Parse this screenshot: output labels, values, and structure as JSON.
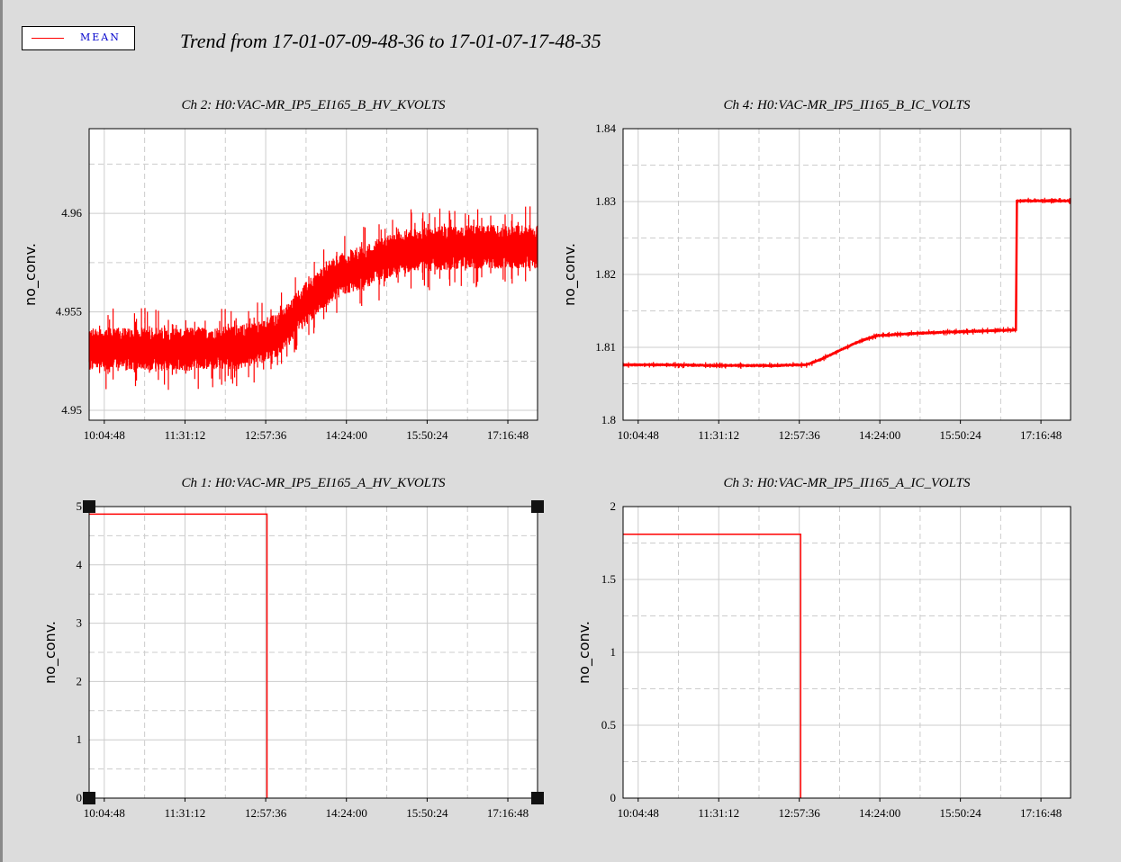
{
  "legend": {
    "label": "MEAN",
    "color": "#ff0000"
  },
  "trend_title": "Trend from 17-01-07-09-48-36 to 17-01-07-17-48-35",
  "chart_data": [
    {
      "id": "ch2",
      "type": "line",
      "title": "Ch 2: H0:VAC-MR_IP5_EI165_B_HV_KVOLTS",
      "ylabel": "no_conv.",
      "xticks": [
        "10:04:48",
        "11:31:12",
        "12:57:36",
        "14:24:00",
        "15:50:24",
        "17:16:48"
      ],
      "yticks": [
        "4.95",
        "4.955",
        "4.96"
      ],
      "ylim": [
        4.9495,
        4.9643
      ],
      "grid": true,
      "noisy": true,
      "series": [
        {
          "color": "#ff0000",
          "x": [
            "09:48:36",
            "10:30",
            "11:10",
            "11:50",
            "12:30",
            "12:50",
            "13:10",
            "13:20",
            "13:30",
            "13:45",
            "14:00",
            "14:15",
            "14:30",
            "14:45",
            "15:00",
            "15:30",
            "16:00",
            "16:30",
            "17:00",
            "17:48"
          ],
          "values": [
            4.9531,
            4.9531,
            4.9531,
            4.9531,
            4.9532,
            4.9535,
            4.9538,
            4.9542,
            4.9549,
            4.9556,
            4.9563,
            4.9568,
            4.9571,
            4.9573,
            4.9577,
            4.9581,
            4.9582,
            4.9583,
            4.9583,
            4.9583
          ]
        }
      ]
    },
    {
      "id": "ch4",
      "type": "line",
      "title": "Ch 4: H0:VAC-MR_IP5_II165_B_IC_VOLTS",
      "ylabel": "no_conv.",
      "xticks": [
        "10:04:48",
        "11:31:12",
        "12:57:36",
        "14:24:00",
        "15:50:24",
        "17:16:48"
      ],
      "yticks": [
        "1.8",
        "1.81",
        "1.82",
        "1.83",
        "1.84"
      ],
      "ylim": [
        1.8,
        1.84
      ],
      "grid": true,
      "noisy": true,
      "series": [
        {
          "color": "#ff0000",
          "x": [
            "09:48:36",
            "10:30",
            "11:30",
            "12:30",
            "13:05",
            "13:20",
            "13:40",
            "14:00",
            "14:20",
            "15:00",
            "15:40",
            "16:30",
            "16:50",
            "16:51",
            "17:48"
          ],
          "values": [
            1.8076,
            1.8076,
            1.8075,
            1.8075,
            1.8076,
            1.8083,
            1.8095,
            1.8107,
            1.8116,
            1.8119,
            1.8121,
            1.8123,
            1.8124,
            1.8301,
            1.8301
          ]
        }
      ]
    },
    {
      "id": "ch1",
      "type": "line",
      "title": "Ch 1: H0:VAC-MR_IP5_EI165_A_HV_KVOLTS",
      "ylabel": "no_conv.",
      "xticks": [
        "10:04:48",
        "11:31:12",
        "12:57:36",
        "14:24:00",
        "15:50:24",
        "17:16:48"
      ],
      "yticks": [
        "0",
        "1",
        "2",
        "3",
        "4",
        "5"
      ],
      "ylim": [
        0,
        5
      ],
      "grid": true,
      "noisy": false,
      "series": [
        {
          "color": "#ff0000",
          "x": [
            "09:48:36",
            "12:59",
            "12:59"
          ],
          "values": [
            4.87,
            4.87,
            0
          ]
        }
      ]
    },
    {
      "id": "ch3",
      "type": "line",
      "title": "Ch 3: H0:VAC-MR_IP5_II165_A_IC_VOLTS",
      "ylabel": "no_conv.",
      "xticks": [
        "10:04:48",
        "11:31:12",
        "12:57:36",
        "14:24:00",
        "15:50:24",
        "17:16:48"
      ],
      "yticks": [
        "0",
        "0.5",
        "1",
        "1.5",
        "2"
      ],
      "ylim": [
        0,
        2
      ],
      "grid": true,
      "noisy": false,
      "series": [
        {
          "color": "#ff0000",
          "x": [
            "09:48:36",
            "12:59",
            "12:59"
          ],
          "values": [
            1.81,
            1.81,
            0
          ]
        }
      ]
    }
  ]
}
